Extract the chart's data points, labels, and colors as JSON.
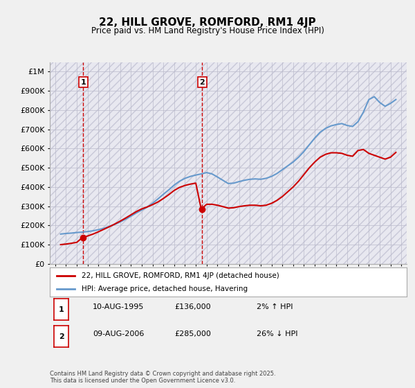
{
  "title": "22, HILL GROVE, ROMFORD, RM1 4JP",
  "subtitle": "Price paid vs. HM Land Registry's House Price Index (HPI)",
  "background_color": "#f0f0f0",
  "plot_bg_color": "#ffffff",
  "hatch_color": "#d8d8e8",
  "ylabel": "",
  "xlabel": "",
  "ylim": [
    0,
    1050000
  ],
  "yticks": [
    0,
    100000,
    200000,
    300000,
    400000,
    500000,
    600000,
    700000,
    800000,
    900000,
    1000000
  ],
  "ytick_labels": [
    "£0",
    "£100K",
    "£200K",
    "£300K",
    "£400K",
    "£500K",
    "£600K",
    "£700K",
    "£800K",
    "£900K",
    "£1M"
  ],
  "xmin_year": 1993,
  "xmax_year": 2025,
  "xticks": [
    1993,
    1994,
    1995,
    1996,
    1997,
    1998,
    1999,
    2000,
    2001,
    2002,
    2003,
    2004,
    2005,
    2006,
    2007,
    2008,
    2009,
    2010,
    2011,
    2012,
    2013,
    2014,
    2015,
    2016,
    2017,
    2018,
    2019,
    2020,
    2021,
    2022,
    2023,
    2024,
    2025
  ],
  "marker1_x": 1995.6,
  "marker1_y": 136000,
  "marker1_label": "1",
  "marker1_vline_x": 1995.6,
  "marker2_x": 2006.6,
  "marker2_y": 285000,
  "marker2_label": "2",
  "marker2_vline_x": 2006.6,
  "sale_color": "#cc0000",
  "hpi_color": "#6699cc",
  "legend_sale": "22, HILL GROVE, ROMFORD, RM1 4JP (detached house)",
  "legend_hpi": "HPI: Average price, detached house, Havering",
  "table_row1": [
    "1",
    "10-AUG-1995",
    "£136,000",
    "2% ↑ HPI"
  ],
  "table_row2": [
    "2",
    "09-AUG-2006",
    "£285,000",
    "26% ↓ HPI"
  ],
  "footer": "Contains HM Land Registry data © Crown copyright and database right 2025.\nThis data is licensed under the Open Government Licence v3.0.",
  "hpi_data_x": [
    1993.5,
    1994,
    1994.5,
    1995,
    1995.5,
    1996,
    1996.5,
    1997,
    1997.5,
    1998,
    1998.5,
    1999,
    1999.5,
    2000,
    2000.5,
    2001,
    2001.5,
    2002,
    2002.5,
    2003,
    2003.5,
    2004,
    2004.5,
    2005,
    2005.5,
    2006,
    2006.5,
    2007,
    2007.5,
    2008,
    2008.5,
    2009,
    2009.5,
    2010,
    2010.5,
    2011,
    2011.5,
    2012,
    2012.5,
    2013,
    2013.5,
    2014,
    2014.5,
    2015,
    2015.5,
    2016,
    2016.5,
    2017,
    2017.5,
    2018,
    2018.5,
    2019,
    2019.5,
    2020,
    2020.5,
    2021,
    2021.5,
    2022,
    2022.5,
    2023,
    2023.5,
    2024,
    2024.5
  ],
  "hpi_data_y": [
    155000,
    158000,
    160000,
    163000,
    165000,
    168000,
    172000,
    178000,
    185000,
    195000,
    205000,
    218000,
    232000,
    248000,
    265000,
    280000,
    295000,
    315000,
    338000,
    362000,
    385000,
    410000,
    430000,
    445000,
    455000,
    462000,
    468000,
    475000,
    468000,
    452000,
    435000,
    418000,
    420000,
    428000,
    435000,
    440000,
    442000,
    440000,
    445000,
    455000,
    470000,
    490000,
    510000,
    530000,
    555000,
    585000,
    620000,
    655000,
    685000,
    705000,
    718000,
    725000,
    730000,
    720000,
    715000,
    740000,
    790000,
    855000,
    870000,
    840000,
    820000,
    835000,
    855000
  ],
  "sale_data_x": [
    1993.5,
    1994,
    1994.5,
    1995,
    1995.5,
    1996,
    1996.5,
    1997,
    1997.5,
    1998,
    1998.5,
    1999,
    1999.5,
    2000,
    2000.5,
    2001,
    2001.5,
    2002,
    2002.5,
    2003,
    2003.5,
    2004,
    2004.5,
    2005,
    2005.5,
    2006,
    2006.5,
    2007,
    2007.5,
    2008,
    2008.5,
    2009,
    2009.5,
    2010,
    2010.5,
    2011,
    2011.5,
    2012,
    2012.5,
    2013,
    2013.5,
    2014,
    2014.5,
    2015,
    2015.5,
    2016,
    2016.5,
    2017,
    2017.5,
    2018,
    2018.5,
    2019,
    2019.5,
    2020,
    2020.5,
    2021,
    2021.5,
    2022,
    2022.5,
    2023,
    2023.5,
    2024,
    2024.5
  ],
  "sale_data_y": [
    100000,
    103000,
    107000,
    112000,
    136000,
    145000,
    155000,
    167000,
    180000,
    193000,
    207000,
    222000,
    238000,
    255000,
    272000,
    286000,
    296000,
    308000,
    322000,
    340000,
    360000,
    382000,
    398000,
    408000,
    415000,
    420000,
    285000,
    310000,
    310000,
    305000,
    298000,
    290000,
    292000,
    298000,
    302000,
    305000,
    305000,
    302000,
    305000,
    315000,
    330000,
    350000,
    375000,
    400000,
    430000,
    465000,
    500000,
    530000,
    555000,
    570000,
    578000,
    578000,
    575000,
    565000,
    560000,
    590000,
    595000,
    575000,
    565000,
    555000,
    545000,
    555000,
    580000
  ]
}
